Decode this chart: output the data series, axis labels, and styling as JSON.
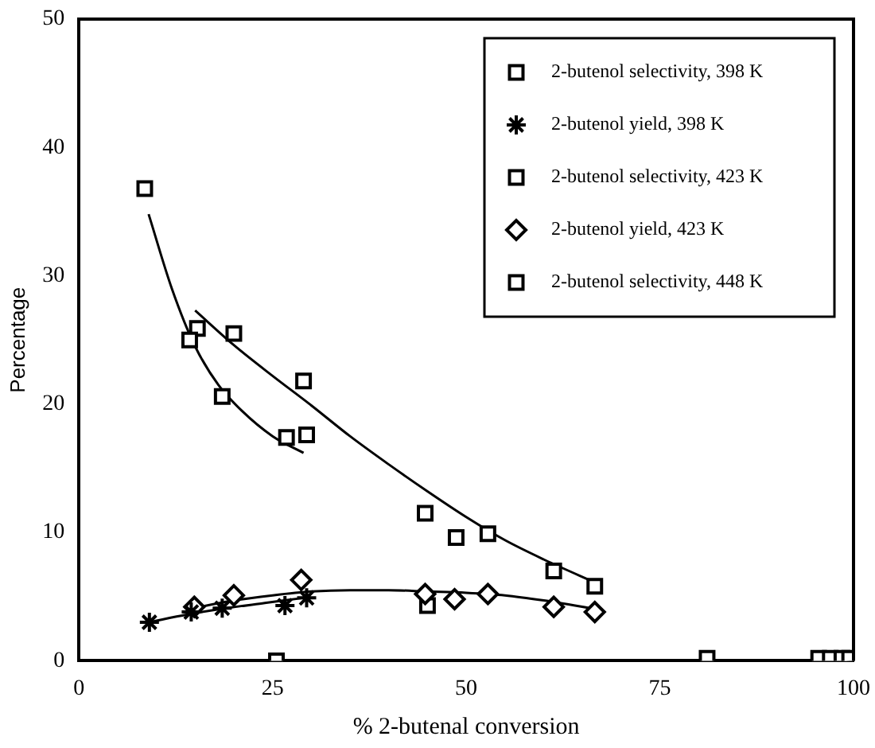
{
  "chart_data": {
    "type": "scatter",
    "xlabel": "% 2-butenal conversion",
    "ylabel": "Percentage",
    "xlim": [
      0,
      100
    ],
    "xticks": [
      0,
      25,
      50,
      75,
      100
    ],
    "ylim": [
      0,
      50
    ],
    "yticks": [
      0,
      10,
      20,
      30,
      40,
      50
    ],
    "grid": false,
    "legend": "top right",
    "series": [
      {
        "name": "2-butenol selectivity, 398 K",
        "color": "#000000",
        "marker": "square",
        "x": [
          8.5,
          14.3,
          18.5,
          26.8,
          29.4
        ],
        "values": [
          36.8,
          25.0,
          20.6,
          17.4,
          17.6
        ]
      },
      {
        "name": "2-butenol yield, 398 K",
        "color": "#000000",
        "marker": "cross",
        "x": [
          9.1,
          14.5,
          18.5,
          26.6,
          29.4
        ],
        "values": [
          3.0,
          3.8,
          4.1,
          4.3,
          4.9
        ]
      },
      {
        "name": "2-butenol selectivity, 423 K",
        "color": "#000000",
        "marker": "square",
        "x": [
          15.3,
          20,
          29,
          44.7,
          48.7,
          52.8,
          61.3,
          66.6
        ],
        "values": [
          25.9,
          25.5,
          21.8,
          11.5,
          9.6,
          9.9,
          7.0,
          5.8
        ]
      },
      {
        "name": "2-butenol yield, 423 K",
        "color": "#000000",
        "marker": "diamond",
        "x": [
          14.9,
          20,
          28.7,
          44.7,
          48.5,
          52.8,
          61.3,
          66.6
        ],
        "values": [
          4.2,
          5.1,
          6.3,
          5.2,
          4.8,
          5.2,
          4.2,
          3.8
        ]
      },
      {
        "name": "2-butenol selectivity, 448 K",
        "color": "#000000",
        "marker": "square",
        "x": [
          25.5,
          45,
          81.1,
          95.5,
          97,
          98.5,
          99.5
        ],
        "values": [
          0,
          4.3,
          0.2,
          0.2,
          0.2,
          0.2,
          0.2
        ]
      },
      {
        "type": "line",
        "color": "#000000",
        "marker": "none",
        "x": [
          9,
          12,
          15,
          18,
          21,
          25,
          29
        ],
        "values": [
          34.8,
          29,
          24.5,
          21.5,
          19.5,
          17.5,
          16.2
        ]
      },
      {
        "type": "line",
        "color": "#000000",
        "marker": "none",
        "x": [
          15,
          20,
          25,
          30,
          35,
          40,
          45,
          50,
          55,
          60,
          67
        ],
        "values": [
          27.3,
          24.6,
          22.2,
          19.9,
          17.5,
          15.3,
          13.2,
          11.2,
          9.4,
          7.9,
          6.0
        ]
      },
      {
        "type": "line",
        "color": "#000000",
        "marker": "none",
        "x": [
          9,
          14,
          19,
          24,
          29
        ],
        "values": [
          3.0,
          3.6,
          4.1,
          4.5,
          4.9
        ]
      },
      {
        "type": "line",
        "color": "#000000",
        "marker": "none",
        "x": [
          14,
          20,
          25,
          30,
          35,
          40,
          45,
          50,
          55,
          60,
          67
        ],
        "values": [
          4.0,
          4.7,
          5.1,
          5.4,
          5.5,
          5.5,
          5.4,
          5.3,
          5.1,
          4.7,
          4.0
        ]
      }
    ]
  }
}
